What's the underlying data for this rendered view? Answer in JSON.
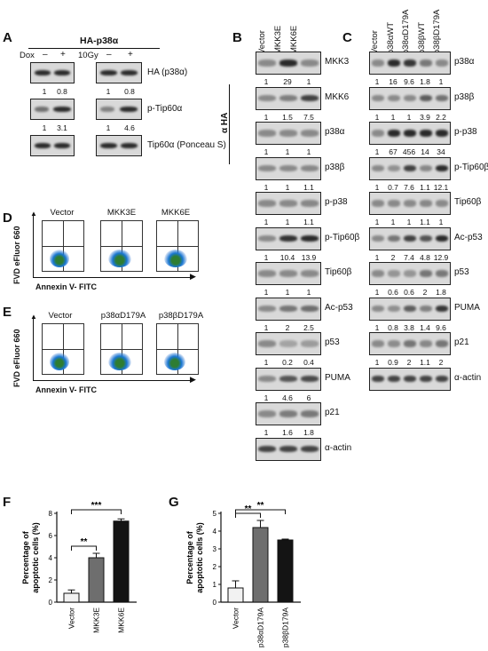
{
  "panels": {
    "A": {
      "letter": "A",
      "header": "HA-p38α",
      "dox_label": "Dox",
      "signs": [
        "–",
        "+",
        "–",
        "+"
      ],
      "irradiation_label": "10Gy",
      "rows": [
        {
          "label": "HA (p38α)",
          "quant_left": [
            "1",
            "0.8"
          ],
          "quant_right": [
            "1",
            "0.8"
          ]
        },
        {
          "label": "p-Tip60α",
          "quant_left": [
            "1",
            "3.1"
          ],
          "quant_right": [
            "1",
            "4.6"
          ]
        },
        {
          "label": "Tip60α (Ponceau S)",
          "quant_left": [],
          "quant_right": []
        }
      ]
    },
    "B": {
      "letter": "B",
      "lanes": [
        "Vector",
        "MKK3E",
        "MKK6E"
      ],
      "side_label": "α HA",
      "rows": [
        {
          "label": "MKK3",
          "quant": [
            "1",
            "29",
            "1"
          ]
        },
        {
          "label": "MKK6",
          "quant": [
            "1",
            "1.5",
            "7.5"
          ]
        },
        {
          "label": "p38α",
          "quant": [
            "1",
            "1",
            "1"
          ]
        },
        {
          "label": "p38β",
          "quant": [
            "1",
            "1",
            "1.1"
          ]
        },
        {
          "label": "p-p38",
          "quant": [
            "1",
            "1",
            "1.1"
          ]
        },
        {
          "label": "p-Tip60β",
          "quant": [
            "1",
            "10.4",
            "13.9"
          ]
        },
        {
          "label": "Tip60β",
          "quant": [
            "1",
            "1",
            "1"
          ]
        },
        {
          "label": "Ac-p53",
          "quant": [
            "1",
            "2",
            "2.5"
          ]
        },
        {
          "label": "p53",
          "quant": [
            "1",
            "0.2",
            "0.4"
          ]
        },
        {
          "label": "PUMA",
          "quant": [
            "1",
            "4.6",
            "6"
          ]
        },
        {
          "label": "p21",
          "quant": [
            "1",
            "1.6",
            "1.8"
          ]
        },
        {
          "label": "α-actin",
          "quant": []
        }
      ]
    },
    "C": {
      "letter": "C",
      "lanes": [
        "Vector",
        "p38αWT",
        "p38αD179A",
        "p38βWT",
        "p38βD179A"
      ],
      "rows": [
        {
          "label": "p38α",
          "quant": [
            "1",
            "16",
            "9.6",
            "1.8",
            "1"
          ]
        },
        {
          "label": "p38β",
          "quant": [
            "1",
            "1",
            "1",
            "3.9",
            "2.2"
          ]
        },
        {
          "label": "p-p38",
          "quant": [
            "1",
            "67",
            "456",
            "14",
            "34"
          ]
        },
        {
          "label": "p-Tip60β",
          "quant": [
            "1",
            "0.7",
            "7.6",
            "1.1",
            "12.1"
          ]
        },
        {
          "label": "Tip60β",
          "quant": [
            "1",
            "1",
            "1",
            "1.1",
            "1"
          ]
        },
        {
          "label": "Ac-p53",
          "quant": [
            "1",
            "2",
            "7.4",
            "4.8",
            "12.9"
          ]
        },
        {
          "label": "p53",
          "quant": [
            "1",
            "0.6",
            "0.6",
            "2",
            "1.8"
          ]
        },
        {
          "label": "PUMA",
          "quant": [
            "1",
            "0.8",
            "3.8",
            "1.4",
            "9.6"
          ]
        },
        {
          "label": "p21",
          "quant": [
            "1",
            "0.9",
            "2",
            "1.1",
            "2"
          ]
        },
        {
          "label": "α-actin",
          "quant": []
        }
      ]
    },
    "D": {
      "letter": "D",
      "plots": [
        "Vector",
        "MKK3E",
        "MKK6E"
      ],
      "y_axis": "FVD eFluor 660",
      "x_axis": "Annexin V- FITC"
    },
    "E": {
      "letter": "E",
      "plots": [
        "Vector",
        "p38αD179A",
        "p38βD179A"
      ],
      "y_axis": "FVD eFluor 660",
      "x_axis": "Annexin V- FITC"
    }
  },
  "chart_data": [
    {
      "panel": "F",
      "type": "bar",
      "categories": [
        "Vector",
        "MKK3E",
        "MKK6E"
      ],
      "values": [
        0.8,
        4.0,
        7.3
      ],
      "errors": [
        0.3,
        0.4,
        0.2
      ],
      "colors": [
        "#f2f2f2",
        "#6e6e6e",
        "#141414"
      ],
      "ylabel": "Percentage of apoptotic cells (%)",
      "yticks": [
        0,
        2,
        4,
        6,
        8
      ],
      "ylim": [
        0,
        8
      ],
      "significance": [
        {
          "from": 0,
          "to": 1,
          "label": "**"
        },
        {
          "from": 0,
          "to": 2,
          "label": "***"
        }
      ]
    },
    {
      "panel": "G",
      "type": "bar",
      "categories": [
        "Vector",
        "p38αD179A",
        "p38βD179A"
      ],
      "values": [
        0.8,
        4.2,
        3.5
      ],
      "errors": [
        0.4,
        0.4,
        0.05
      ],
      "colors": [
        "#f2f2f2",
        "#6e6e6e",
        "#141414"
      ],
      "ylabel": "Percentage of apoptotic cells (%)",
      "yticks": [
        0,
        1,
        2,
        3,
        4,
        5
      ],
      "ylim": [
        0,
        5
      ],
      "significance": [
        {
          "from": 0,
          "to": 1,
          "label": "**"
        },
        {
          "from": 0,
          "to": 2,
          "label": "**"
        }
      ]
    }
  ]
}
